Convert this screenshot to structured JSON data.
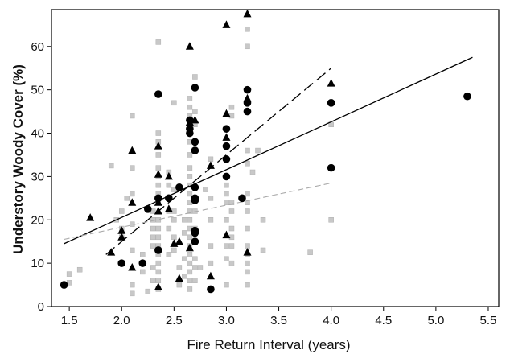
{
  "chart_data": {
    "type": "scatter",
    "title": "",
    "xlabel": "Fire Return Interval (years)",
    "ylabel": "Understory Woody Cover (%)",
    "xlim": [
      1.33,
      5.6
    ],
    "ylim": [
      0,
      68.5
    ],
    "x_ticks": [
      1.5,
      2.0,
      2.5,
      3.0,
      3.5,
      4.0,
      4.5,
      5.0,
      5.5
    ],
    "x_tick_labels": [
      "1.5",
      "2.0",
      "2.5",
      "3.0",
      "3.5",
      "4.0",
      "4.5",
      "5.0",
      "5.5"
    ],
    "y_ticks": [
      0,
      10,
      20,
      30,
      40,
      50,
      60
    ],
    "y_tick_labels": [
      "0",
      "10",
      "20",
      "30",
      "40",
      "50",
      "60"
    ],
    "grid": false,
    "legend": "none",
    "colors": {
      "squares": "#c8c8c8",
      "squares_edge": "#b0b0b0",
      "circles": "#000000",
      "triangles": "#000000",
      "lines": "#000000",
      "gray_line": "#aaaaaa"
    },
    "series": [
      {
        "marker": "square",
        "points": [
          [
            1.5,
            7.5
          ],
          [
            1.6,
            8.5
          ],
          [
            1.5,
            5.5
          ],
          [
            1.9,
            32.5
          ],
          [
            1.95,
            20
          ],
          [
            2.0,
            18
          ],
          [
            2.0,
            16
          ],
          [
            2.0,
            22
          ],
          [
            2.05,
            25
          ],
          [
            2.1,
            44
          ],
          [
            2.1,
            32
          ],
          [
            2.1,
            26
          ],
          [
            2.1,
            19
          ],
          [
            2.1,
            13
          ],
          [
            2.1,
            5
          ],
          [
            2.1,
            3
          ],
          [
            2.2,
            12
          ],
          [
            2.2,
            8
          ],
          [
            2.25,
            3.5
          ],
          [
            2.3,
            22
          ],
          [
            2.3,
            20
          ],
          [
            2.3,
            18
          ],
          [
            2.3,
            16
          ],
          [
            2.3,
            14
          ],
          [
            2.3,
            9
          ],
          [
            2.3,
            6
          ],
          [
            2.35,
            61
          ],
          [
            2.35,
            40
          ],
          [
            2.35,
            38
          ],
          [
            2.35,
            35
          ],
          [
            2.35,
            32
          ],
          [
            2.35,
            30
          ],
          [
            2.35,
            28
          ],
          [
            2.35,
            26
          ],
          [
            2.35,
            24
          ],
          [
            2.35,
            20
          ],
          [
            2.35,
            18
          ],
          [
            2.35,
            16
          ],
          [
            2.35,
            14
          ],
          [
            2.35,
            12
          ],
          [
            2.35,
            10
          ],
          [
            2.35,
            8
          ],
          [
            2.35,
            6
          ],
          [
            2.35,
            4
          ],
          [
            2.45,
            31
          ],
          [
            2.45,
            28
          ],
          [
            2.45,
            22
          ],
          [
            2.45,
            18
          ],
          [
            2.45,
            12
          ],
          [
            2.5,
            47
          ],
          [
            2.5,
            27
          ],
          [
            2.5,
            22
          ],
          [
            2.5,
            20
          ],
          [
            2.5,
            16
          ],
          [
            2.5,
            13
          ],
          [
            2.55,
            9
          ],
          [
            2.55,
            5
          ],
          [
            2.6,
            20
          ],
          [
            2.6,
            17
          ],
          [
            2.6,
            11
          ],
          [
            2.6,
            7
          ],
          [
            2.65,
            48
          ],
          [
            2.65,
            46
          ],
          [
            2.65,
            44
          ],
          [
            2.65,
            41
          ],
          [
            2.65,
            38
          ],
          [
            2.65,
            35
          ],
          [
            2.65,
            32
          ],
          [
            2.65,
            30
          ],
          [
            2.65,
            28
          ],
          [
            2.65,
            26
          ],
          [
            2.65,
            24
          ],
          [
            2.65,
            22
          ],
          [
            2.65,
            20
          ],
          [
            2.65,
            18
          ],
          [
            2.65,
            16
          ],
          [
            2.65,
            14
          ],
          [
            2.65,
            12
          ],
          [
            2.65,
            10
          ],
          [
            2.65,
            8
          ],
          [
            2.65,
            6
          ],
          [
            2.65,
            4
          ],
          [
            2.7,
            53
          ],
          [
            2.7,
            45
          ],
          [
            2.7,
            42
          ],
          [
            2.7,
            22
          ],
          [
            2.7,
            18
          ],
          [
            2.7,
            11
          ],
          [
            2.7,
            9
          ],
          [
            2.7,
            6
          ],
          [
            2.75,
            9
          ],
          [
            2.8,
            27
          ],
          [
            2.85,
            34
          ],
          [
            2.85,
            25
          ],
          [
            2.85,
            20
          ],
          [
            2.85,
            14
          ],
          [
            2.85,
            10
          ],
          [
            3.0,
            28
          ],
          [
            3.0,
            26
          ],
          [
            3.0,
            24
          ],
          [
            3.0,
            20
          ],
          [
            3.0,
            14
          ],
          [
            3.0,
            11
          ],
          [
            3.0,
            5
          ],
          [
            3.05,
            46
          ],
          [
            3.05,
            44
          ],
          [
            3.05,
            24
          ],
          [
            3.05,
            22
          ],
          [
            3.05,
            18
          ],
          [
            3.05,
            16
          ],
          [
            3.05,
            14
          ],
          [
            3.05,
            10
          ],
          [
            3.2,
            64
          ],
          [
            3.2,
            60
          ],
          [
            3.2,
            36
          ],
          [
            3.2,
            33
          ],
          [
            3.2,
            26
          ],
          [
            3.2,
            24
          ],
          [
            3.2,
            22
          ],
          [
            3.2,
            18
          ],
          [
            3.2,
            14
          ],
          [
            3.2,
            12
          ],
          [
            3.2,
            10
          ],
          [
            3.2,
            8
          ],
          [
            3.2,
            5
          ],
          [
            3.25,
            31
          ],
          [
            3.3,
            36
          ],
          [
            3.35,
            20
          ],
          [
            3.35,
            13
          ],
          [
            3.8,
            12.5
          ],
          [
            4.0,
            42
          ],
          [
            4.0,
            20
          ]
        ]
      },
      {
        "marker": "circle",
        "points": [
          [
            1.45,
            5
          ],
          [
            2.0,
            10
          ],
          [
            2.2,
            10
          ],
          [
            2.25,
            22.5
          ],
          [
            2.35,
            49
          ],
          [
            2.35,
            25
          ],
          [
            2.35,
            13
          ],
          [
            2.45,
            25
          ],
          [
            2.55,
            27.5
          ],
          [
            2.65,
            43
          ],
          [
            2.65,
            41
          ],
          [
            2.65,
            40
          ],
          [
            2.7,
            50.5
          ],
          [
            2.7,
            38
          ],
          [
            2.7,
            36
          ],
          [
            2.7,
            27.5
          ],
          [
            2.7,
            25
          ],
          [
            2.7,
            24.5
          ],
          [
            2.7,
            17.5
          ],
          [
            2.7,
            17
          ],
          [
            2.7,
            15
          ],
          [
            2.85,
            4
          ],
          [
            3.0,
            41
          ],
          [
            3.0,
            37
          ],
          [
            3.0,
            34
          ],
          [
            3.0,
            30
          ],
          [
            3.15,
            25
          ],
          [
            3.2,
            50
          ],
          [
            3.2,
            47
          ],
          [
            3.2,
            45
          ],
          [
            4.0,
            47
          ],
          [
            4.0,
            32
          ],
          [
            5.3,
            48.5
          ]
        ]
      },
      {
        "marker": "triangle",
        "points": [
          [
            1.7,
            20.5
          ],
          [
            1.9,
            12.5
          ],
          [
            2.0,
            17.5
          ],
          [
            2.0,
            16
          ],
          [
            2.1,
            36
          ],
          [
            2.1,
            24
          ],
          [
            2.1,
            9
          ],
          [
            2.35,
            37
          ],
          [
            2.35,
            30.5
          ],
          [
            2.35,
            24
          ],
          [
            2.35,
            22
          ],
          [
            2.35,
            4.5
          ],
          [
            2.45,
            30
          ],
          [
            2.45,
            22.5
          ],
          [
            2.5,
            14.5
          ],
          [
            2.55,
            15
          ],
          [
            2.55,
            6.5
          ],
          [
            2.65,
            60
          ],
          [
            2.65,
            42.5
          ],
          [
            2.65,
            13.5
          ],
          [
            2.7,
            43
          ],
          [
            2.85,
            7
          ],
          [
            2.85,
            32.5
          ],
          [
            3.0,
            65
          ],
          [
            3.0,
            44.5
          ],
          [
            3.0,
            39
          ],
          [
            3.0,
            16.5
          ],
          [
            3.2,
            67.5
          ],
          [
            3.2,
            48
          ],
          [
            3.2,
            12.5
          ],
          [
            4.0,
            51.5
          ]
        ]
      }
    ],
    "lines": [
      {
        "style": "solid",
        "from": [
          1.45,
          14.5
        ],
        "to": [
          5.35,
          57.5
        ]
      },
      {
        "style": "long-dash",
        "from": [
          1.85,
          12
        ],
        "to": [
          4.0,
          55
        ]
      },
      {
        "style": "gray-dash",
        "from": [
          1.45,
          15.5
        ],
        "to": [
          4.0,
          28.5
        ]
      }
    ]
  }
}
